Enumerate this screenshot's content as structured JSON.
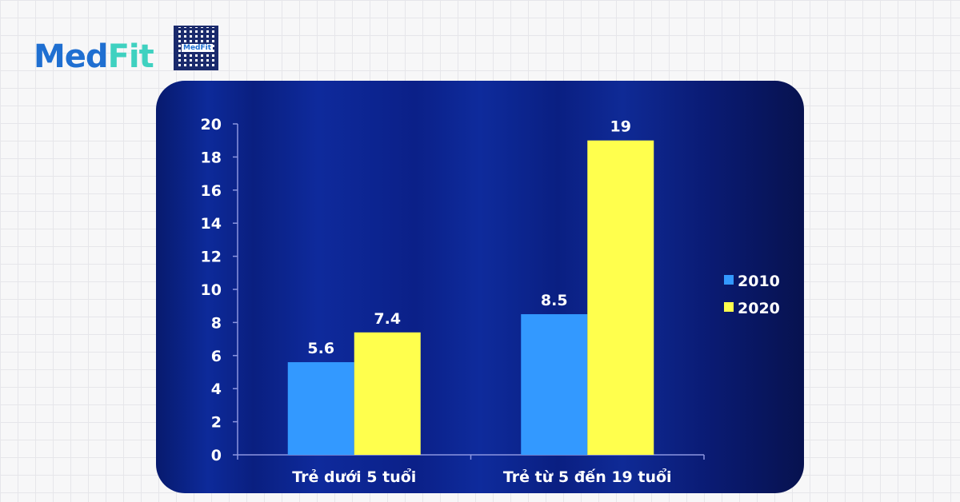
{
  "brand": {
    "name_part1": "Med",
    "name_part2": "Fit",
    "qr_label": "MedFit"
  },
  "chart_data": {
    "type": "bar",
    "title": "",
    "xlabel": "",
    "ylabel": "",
    "categories": [
      "Trẻ dưới 5 tuổi",
      "Trẻ từ 5 đến 19 tuổi"
    ],
    "series": [
      {
        "name": "2010",
        "values": [
          5.6,
          8.5
        ],
        "color": "#3399ff"
      },
      {
        "name": "2020",
        "values": [
          7.4,
          19
        ],
        "color": "#ffff4d"
      }
    ],
    "data_labels": [
      [
        "5.6",
        "8.5"
      ],
      [
        "7.4",
        "19"
      ]
    ],
    "ylim": [
      0,
      20
    ],
    "yticks": [
      "0",
      "2",
      "4",
      "6",
      "8",
      "10",
      "12",
      "14",
      "16",
      "18",
      "20"
    ],
    "grid": false,
    "legend_position": "right"
  }
}
